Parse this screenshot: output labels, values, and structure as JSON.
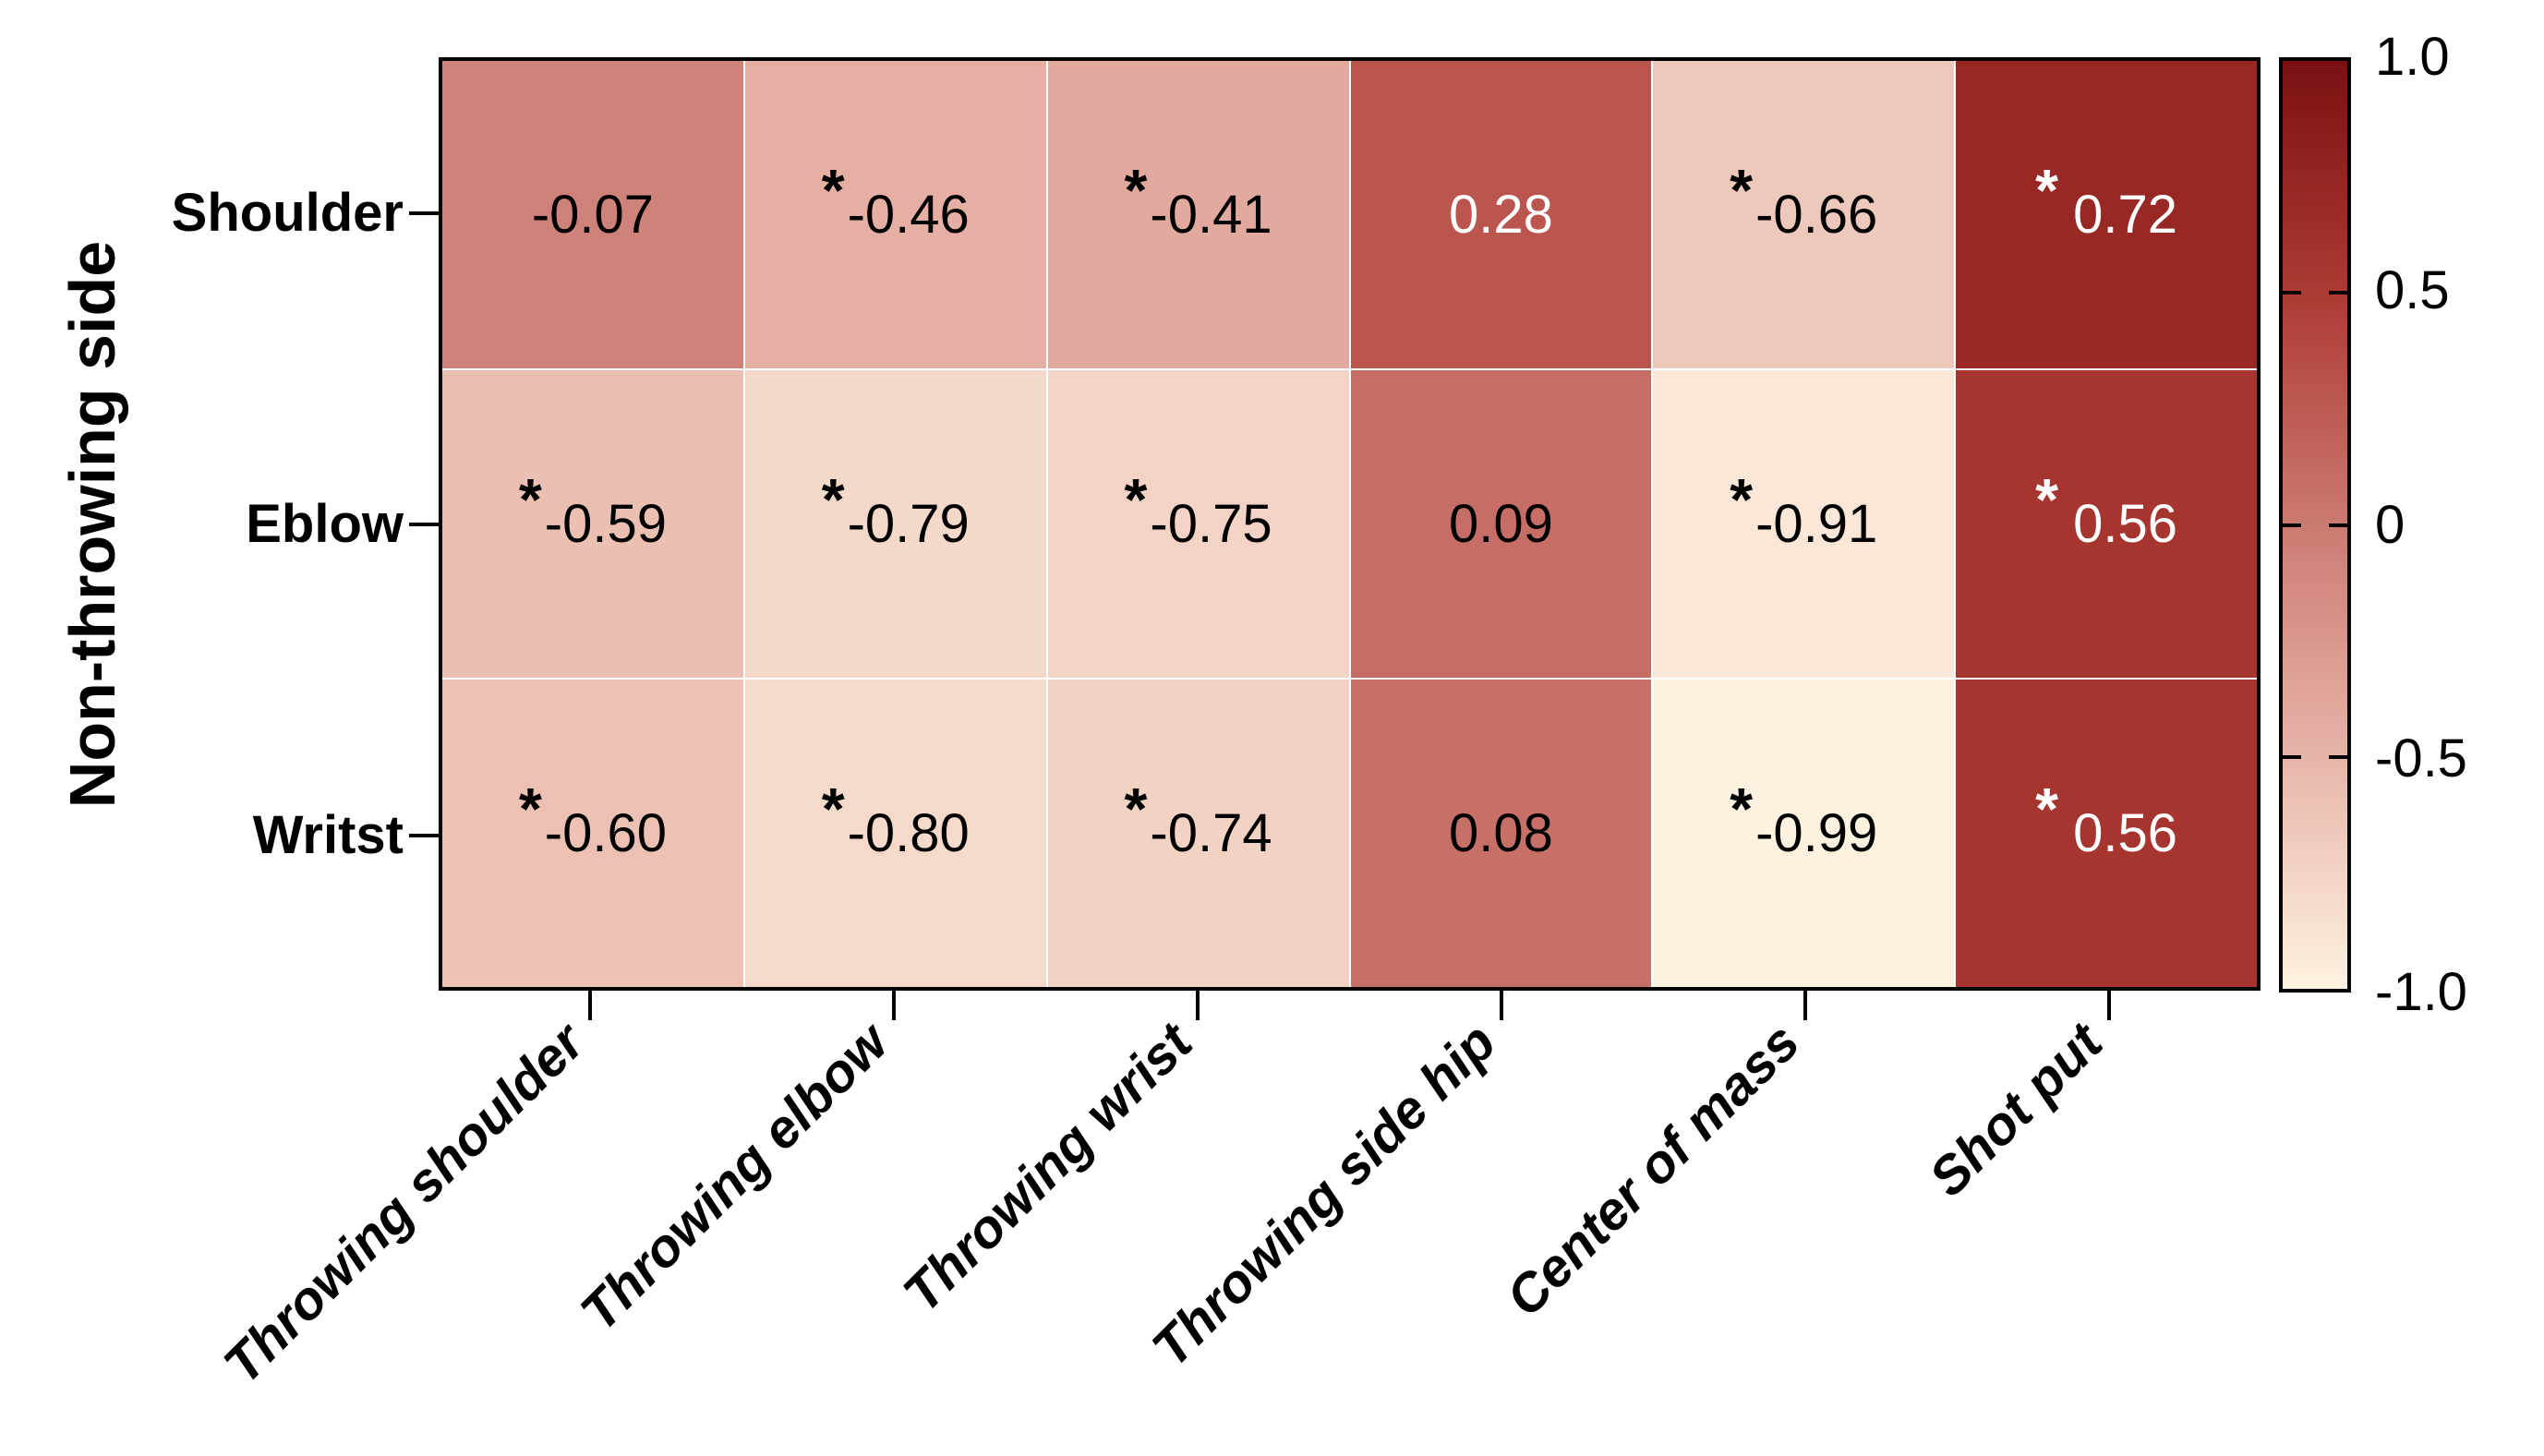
{
  "chart_data": {
    "type": "heatmap",
    "title": "",
    "xlabel": "",
    "ylabel": "Non-throwing side",
    "rows": [
      "Shoulder",
      "Eblow",
      "Writst"
    ],
    "columns": [
      "Throwing shoulder",
      "Throwing elbow",
      "Throwing wrist",
      "Throwing side hip",
      "Center of mass",
      "Shot put"
    ],
    "values": [
      [
        -0.07,
        -0.46,
        -0.41,
        0.28,
        -0.66,
        0.72
      ],
      [
        -0.59,
        -0.79,
        -0.75,
        0.09,
        -0.91,
        0.56
      ],
      [
        -0.6,
        -0.8,
        -0.74,
        0.08,
        -0.99,
        0.56
      ]
    ],
    "cell_labels": [
      [
        "-0.07",
        "-0.46",
        "-0.41",
        "0.28",
        "-0.66",
        "0.72"
      ],
      [
        "-0.59",
        "-0.79",
        "-0.75",
        "0.09",
        "-0.91",
        "0.56"
      ],
      [
        "-0.60",
        "-0.80",
        "-0.74",
        "0.08",
        "-0.99",
        "0.56"
      ]
    ],
    "significant": [
      [
        false,
        true,
        true,
        false,
        true,
        true
      ],
      [
        true,
        true,
        true,
        false,
        true,
        true
      ],
      [
        true,
        true,
        true,
        false,
        true,
        true
      ]
    ],
    "significance_marker": "*",
    "text_colors": [
      [
        "#000000",
        "#000000",
        "#000000",
        "#ffffff",
        "#000000",
        "#ffffff"
      ],
      [
        "#000000",
        "#000000",
        "#000000",
        "#000000",
        "#000000",
        "#ffffff"
      ],
      [
        "#000000",
        "#000000",
        "#000000",
        "#000000",
        "#000000",
        "#ffffff"
      ]
    ],
    "vmin": -1,
    "vmax": 1,
    "grid": false,
    "legend_position": "right-colorbar",
    "colorbar": {
      "ticks": [
        {
          "label": "1.0",
          "value": 1.0
        },
        {
          "label": "0.5",
          "value": 0.5
        },
        {
          "label": "0",
          "value": 0.0
        },
        {
          "label": "-0.5",
          "value": -0.5
        },
        {
          "label": "-1.0",
          "value": -1.0
        }
      ]
    },
    "colormap": {
      "stops": [
        {
          "pos": -1.0,
          "color": "#fef2e1"
        },
        {
          "pos": -0.5,
          "color": "#e7b4a8"
        },
        {
          "pos": 0.0,
          "color": "#cb7a71"
        },
        {
          "pos": 0.5,
          "color": "#ad3a33"
        },
        {
          "pos": 1.0,
          "color": "#7a1012"
        }
      ]
    },
    "colors": {
      "background": "#ffffff",
      "axis": "#000000",
      "black_text": "#000000",
      "white_text": "#ffffff"
    }
  }
}
